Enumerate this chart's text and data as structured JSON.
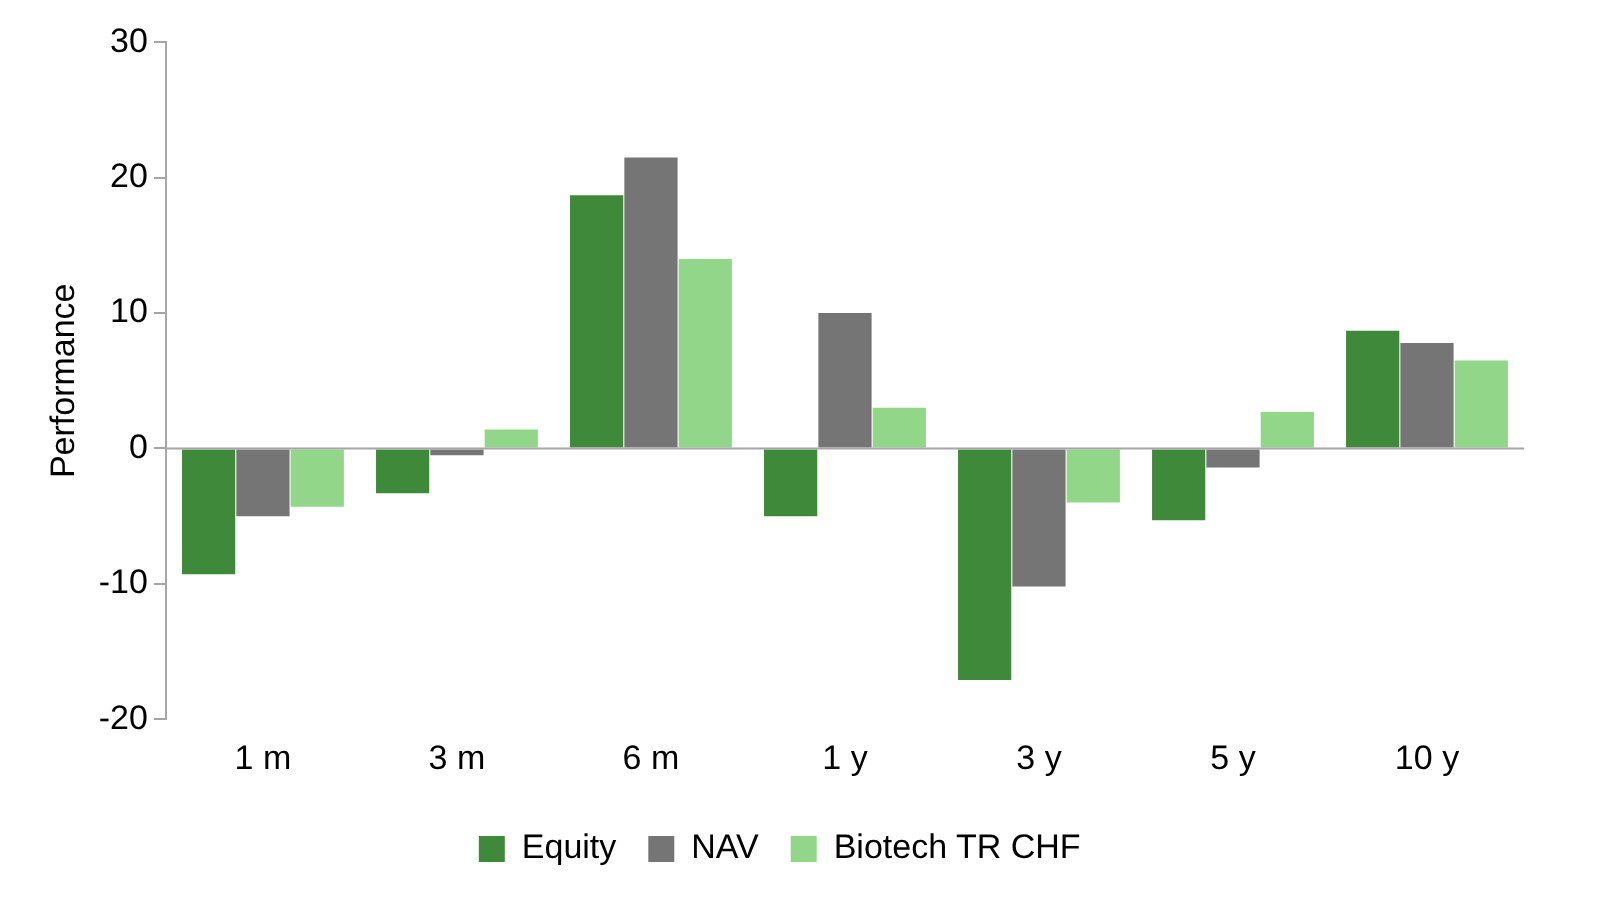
{
  "chart_data": {
    "type": "bar",
    "ylabel": "Performance",
    "categories": [
      "1 m",
      "3 m",
      "6 m",
      "1 y",
      "3 y",
      "5 y",
      "10 y"
    ],
    "series": [
      {
        "name": "Equity",
        "color": "#3f8a3a",
        "values": [
          -9.3,
          -3.3,
          18.7,
          -5.0,
          -17.1,
          -5.3,
          8.7
        ]
      },
      {
        "name": "NAV",
        "color": "#757575",
        "values": [
          -5.0,
          -0.5,
          21.5,
          10.0,
          -10.2,
          -1.4,
          7.8
        ]
      },
      {
        "name": "Biotech TR CHF",
        "color": "#92d68a",
        "values": [
          -4.3,
          1.4,
          14.0,
          3.0,
          -4.0,
          2.7,
          6.5
        ]
      }
    ],
    "ylim": [
      -20,
      30
    ],
    "yticks": [
      -20,
      -10,
      0,
      10,
      20,
      30
    ],
    "grid": false,
    "legend": "bottom",
    "ref_lines": [
      {
        "axis": "y",
        "value": 0,
        "color": "#a6a6a6"
      }
    ]
  }
}
